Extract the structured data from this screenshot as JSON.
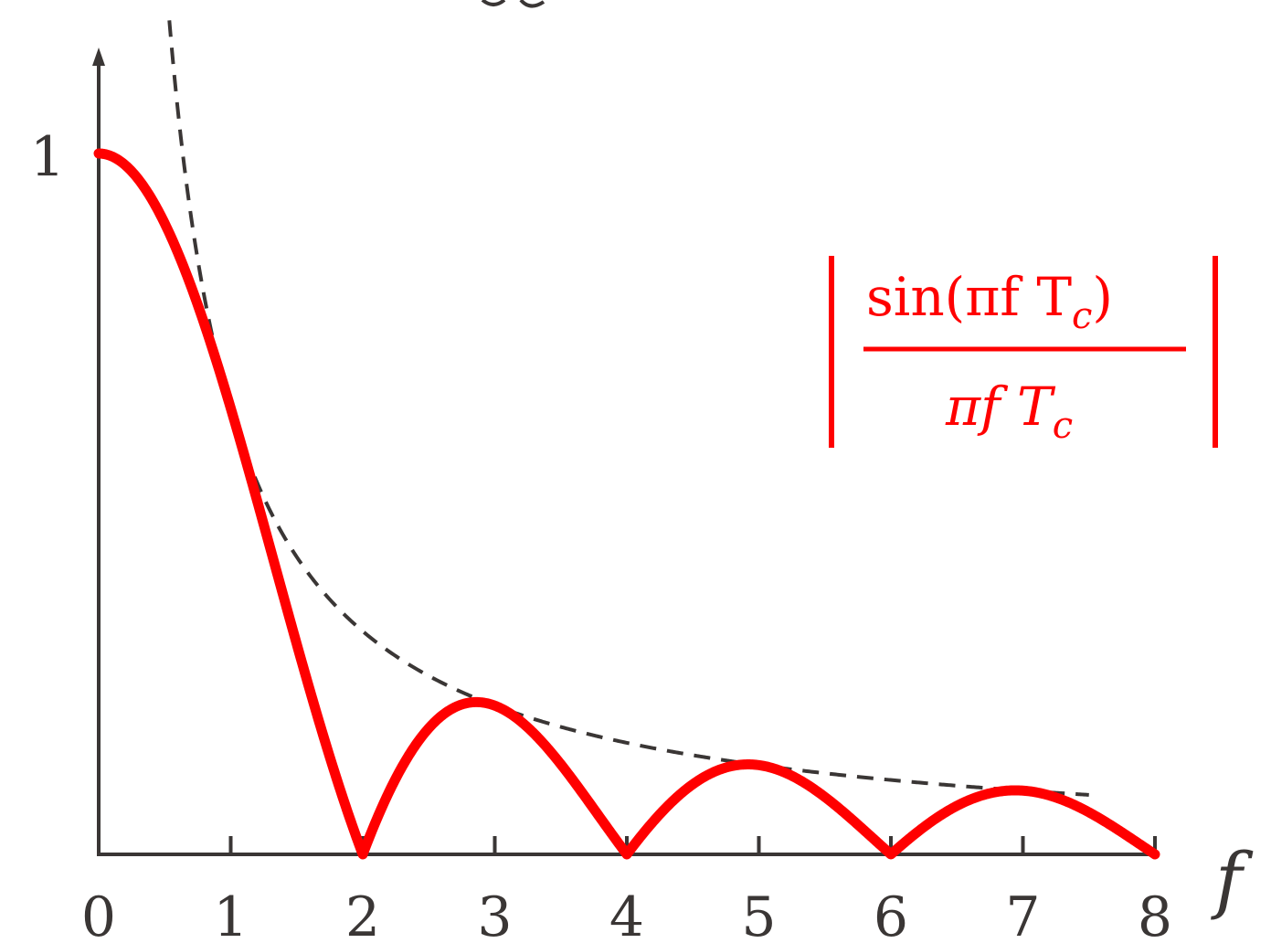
{
  "chart_data": {
    "type": "line",
    "x_axis_label": "f",
    "x_ticks": [
      "0",
      "1",
      "2",
      "3",
      "4",
      "5",
      "6",
      "7",
      "8"
    ],
    "y_ticks": [
      "1"
    ],
    "xlim": [
      0,
      8
    ],
    "ylim": [
      0,
      1
    ],
    "grid": false,
    "series": [
      {
        "role": "sinc-magnitude",
        "color": "#ff0000",
        "style": "solid",
        "x": [
          0,
          0.5,
          1,
          1.5,
          2,
          2.5,
          3,
          3.5,
          4,
          4.5,
          5,
          5.5,
          6,
          6.5,
          7,
          7.5,
          8
        ],
        "y": [
          1,
          0.9,
          0.637,
          0.3,
          0,
          0.18,
          0.212,
          0.129,
          0,
          0.1,
          0.127,
          0.082,
          0,
          0.069,
          0.091,
          0.06,
          0
        ]
      },
      {
        "role": "envelope",
        "color": "#3a3635",
        "style": "dashed",
        "x": [
          0.5,
          0.75,
          1,
          1.5,
          2,
          2.5,
          3,
          4,
          5,
          6,
          7,
          8
        ],
        "y": [
          1.27,
          0.849,
          0.637,
          0.424,
          0.318,
          0.255,
          0.212,
          0.159,
          0.127,
          0.106,
          0.091,
          0.08
        ]
      }
    ],
    "annotation": {
      "numerator": "sin(πf T",
      "numerator_sub": "c",
      "numerator_close": ")",
      "denominator": "πf T",
      "denominator_sub": "c"
    }
  }
}
